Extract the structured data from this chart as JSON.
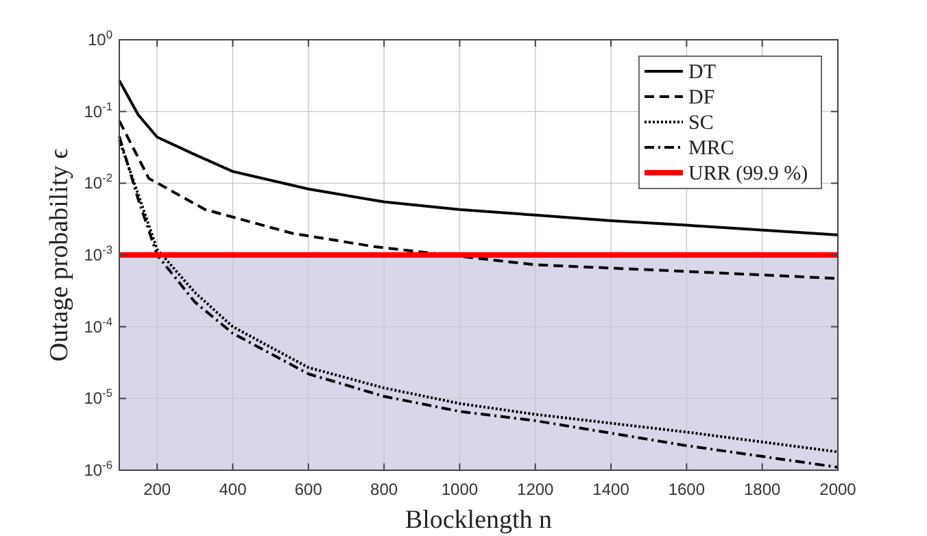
{
  "chart_data": {
    "type": "line",
    "xlabel": "Blocklength n",
    "ylabel": "Outage probability ϵ",
    "log": "y",
    "grid": true,
    "legend": "top right",
    "xlim": [
      100,
      2000
    ],
    "xticks": [
      200,
      400,
      600,
      800,
      1000,
      1200,
      1400,
      1600,
      1800,
      2000
    ],
    "ylim": [
      1e-06,
      1
    ],
    "yticks": [
      {
        "value": 1e-06,
        "label": "10$^{-6}$"
      },
      {
        "value": 1e-05,
        "label": "10$^{-5}$"
      },
      {
        "value": 0.0001,
        "label": "10$^{-4}$"
      },
      {
        "value": 0.001,
        "label": "10$^{-3}$"
      },
      {
        "value": 0.01,
        "label": "10$^{-2}$"
      },
      {
        "value": 0.1,
        "label": "10$^{-1}$"
      },
      {
        "value": 1,
        "label": "10$^{0}$"
      }
    ],
    "bands": [
      {
        "axis": "y",
        "from": 1e-06,
        "to": 0.001,
        "color": "#d9d6ea"
      }
    ],
    "ref_lines": [
      {
        "axis": "y",
        "value": 0.001,
        "label": "URR (99.9 %)",
        "color": "#ff0000",
        "line_style": "solid"
      }
    ],
    "series": [
      {
        "name": "DT",
        "color": "#000000",
        "line_style": "solid",
        "x": [
          100,
          150,
          200,
          300,
          400,
          600,
          800,
          1000,
          1200,
          1400,
          1600,
          2000
        ],
        "values": [
          0.27,
          0.09,
          0.044,
          0.025,
          0.0146,
          0.0083,
          0.0055,
          0.0043,
          0.0036,
          0.003,
          0.0026,
          0.0019
        ]
      },
      {
        "name": "DF",
        "color": "#000000",
        "line_style": "dashed",
        "x": [
          100,
          178,
          327,
          558,
          777,
          1200,
          1600,
          2000
        ],
        "values": [
          0.074,
          0.0117,
          0.0043,
          0.002,
          0.0013,
          0.00073,
          0.00059,
          0.00047
        ]
      },
      {
        "name": "SC",
        "color": "#000000",
        "line_style": "dotted",
        "x": [
          100,
          150,
          200,
          300,
          400,
          600,
          800,
          1000,
          1200,
          1600,
          2000
        ],
        "values": [
          0.04,
          0.007,
          0.0012,
          0.0003,
          0.0001,
          2.7e-05,
          1.4e-05,
          8.5e-06,
          6e-06,
          3.4e-06,
          1.8e-06
        ]
      },
      {
        "name": "MRC",
        "color": "#000000",
        "line_style": "dashdot",
        "x": [
          100,
          150,
          200,
          300,
          400,
          600,
          800,
          1000,
          1200,
          1600,
          2000
        ],
        "values": [
          0.045,
          0.006,
          0.001,
          0.00022,
          8.1e-05,
          2.2e-05,
          1.07e-05,
          6.6e-06,
          4.9e-06,
          2.2e-06,
          1.1e-06
        ]
      }
    ]
  }
}
